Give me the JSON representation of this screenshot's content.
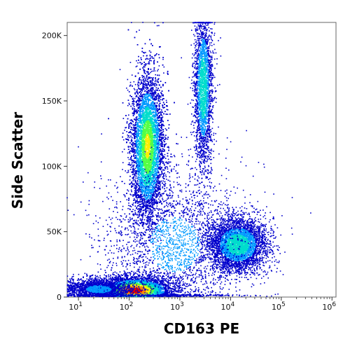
{
  "chart_data": {
    "type": "scatter",
    "subtype": "flow-cytometry-density-dot-plot",
    "title": "",
    "xlabel": "CD163 PE",
    "ylabel": "Side Scatter",
    "x_scale": "log",
    "xlim": [
      6,
      1200000
    ],
    "ylim": [
      0,
      210000
    ],
    "grid": false,
    "colormap": [
      "#0000cc",
      "#0099ff",
      "#00ddcc",
      "#55ff44",
      "#ffee00",
      "#ff8800",
      "#dd0000"
    ],
    "x_ticks": [
      {
        "value": 10,
        "base": "10",
        "exp": "1"
      },
      {
        "value": 100,
        "base": "10",
        "exp": "2"
      },
      {
        "value": 1000,
        "base": "10",
        "exp": "3"
      },
      {
        "value": 10000,
        "base": "10",
        "exp": "4"
      },
      {
        "value": 100000,
        "base": "10",
        "exp": "5"
      },
      {
        "value": 1000000,
        "base": "10",
        "exp": "6"
      }
    ],
    "y_ticks": [
      {
        "value": 0,
        "label": "0"
      },
      {
        "value": 50000,
        "label": "50K"
      },
      {
        "value": 100000,
        "label": "100K"
      },
      {
        "value": 150000,
        "label": "150K"
      },
      {
        "value": 200000,
        "label": "200K"
      }
    ],
    "populations": [
      {
        "id": "lymphocytes",
        "x_center": 130,
        "y_center": 5000,
        "x_spread_decades": 0.35,
        "y_spread": 5000,
        "count": 9000,
        "peak_density": "high"
      },
      {
        "id": "low-debris",
        "x_center": 25,
        "y_center": 6000,
        "x_spread_decades": 0.35,
        "y_spread": 4000,
        "count": 1800,
        "peak_density": "low"
      },
      {
        "id": "granulocytes",
        "x_center": 230,
        "y_center": 115000,
        "x_spread_decades": 0.16,
        "y_spread": 28000,
        "count": 9000,
        "peak_density": "medium-high"
      },
      {
        "id": "eosinophils",
        "x_center": 2900,
        "y_center": 160000,
        "x_spread_decades": 0.09,
        "y_spread": 30000,
        "count": 2500,
        "peak_density": "medium"
      },
      {
        "id": "monocytes-cd163-positive",
        "x_center": 14000,
        "y_center": 40000,
        "x_spread_decades": 0.28,
        "y_spread": 10000,
        "count": 4200,
        "peak_density": "medium"
      },
      {
        "id": "background-scatter",
        "x_center": 800,
        "y_center": 40000,
        "x_spread_decades": 0.7,
        "y_spread": 30000,
        "count": 2500,
        "peak_density": "low"
      }
    ]
  }
}
